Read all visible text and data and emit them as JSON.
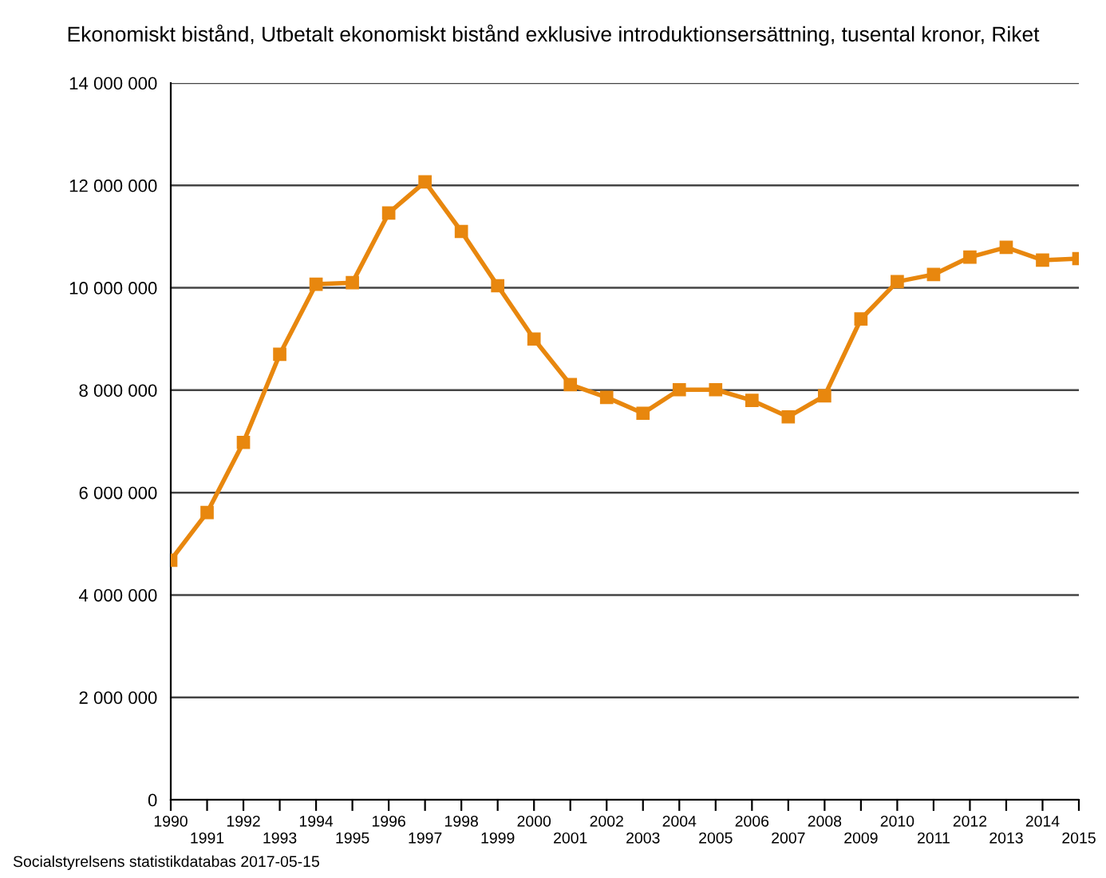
{
  "chart_data": {
    "type": "line",
    "title": "Ekonomiskt bistånd, Utbetalt ekonomiskt bistånd exklusive introduktionsersättning, tusental kronor, Riket",
    "categories": [
      "1990",
      "1991",
      "1992",
      "1993",
      "1994",
      "1995",
      "1996",
      "1997",
      "1998",
      "1999",
      "2000",
      "2001",
      "2002",
      "2003",
      "2004",
      "2005",
      "2006",
      "2007",
      "2008",
      "2009",
      "2010",
      "2011",
      "2012",
      "2013",
      "2014",
      "2015"
    ],
    "series": [
      {
        "color": "#e8870e",
        "values": [
          4680000,
          5610000,
          6980000,
          8700000,
          10070000,
          10100000,
          11460000,
          12070000,
          11100000,
          10040000,
          9000000,
          8110000,
          7860000,
          7550000,
          8010000,
          8010000,
          7800000,
          7480000,
          7890000,
          9390000,
          10120000,
          10260000,
          10600000,
          10790000,
          10540000,
          10570000
        ]
      }
    ],
    "ylim": [
      0,
      14000000
    ],
    "yticks": [
      {
        "value": 0,
        "label": "0"
      },
      {
        "value": 2000000,
        "label": "2 000 000"
      },
      {
        "value": 4000000,
        "label": "4 000 000"
      },
      {
        "value": 6000000,
        "label": "6 000 000"
      },
      {
        "value": 8000000,
        "label": "8 000 000"
      },
      {
        "value": 10000000,
        "label": "10 000 000"
      },
      {
        "value": 12000000,
        "label": "12 000 000"
      },
      {
        "value": 14000000,
        "label": "14 000 000"
      }
    ],
    "grid": "y",
    "marker": "square",
    "line_style": "solid",
    "legend": false,
    "annotations": [
      "Socialstyrelsens statistikdatabas 2017-05-15"
    ]
  }
}
